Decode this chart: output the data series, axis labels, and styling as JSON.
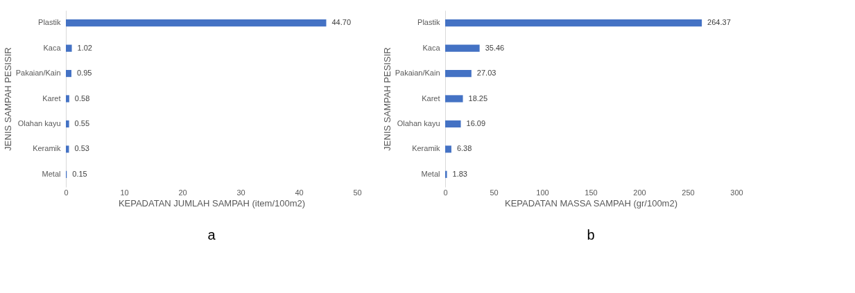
{
  "chart_data": [
    {
      "type": "bar",
      "orientation": "horizontal",
      "categories": [
        "Plastik",
        "Kaca",
        "Pakaian/Kain",
        "Karet",
        "Olahan kayu",
        "Keramik",
        "Metal"
      ],
      "values": [
        44.7,
        1.02,
        0.95,
        0.58,
        0.55,
        0.53,
        0.15
      ],
      "value_labels": [
        "44.70",
        "1.02",
        "0.95",
        "0.58",
        "0.55",
        "0.53",
        "0.15"
      ],
      "color": "#4472c4",
      "xlim": [
        0,
        50
      ],
      "xticks": [
        0,
        10,
        20,
        30,
        40,
        50
      ],
      "xlabel": "KEPADATAN JUMLAH SAMPAH (item/100m2)",
      "ylabel": "JENIS SAMPAH PESISIR",
      "grid": false,
      "annotations": [
        "a"
      ]
    },
    {
      "type": "bar",
      "orientation": "horizontal",
      "categories": [
        "Plastik",
        "Kaca",
        "Pakaian/Kain",
        "Karet",
        "Olahan kayu",
        "Keramik",
        "Metal"
      ],
      "values": [
        264.37,
        35.46,
        27.03,
        18.25,
        16.09,
        6.38,
        1.83
      ],
      "value_labels": [
        "264.37",
        "35.46",
        "27.03",
        "18.25",
        "16.09",
        "6.38",
        "1.83"
      ],
      "color": "#4472c4",
      "xlim": [
        0,
        300
      ],
      "xticks": [
        0,
        50,
        100,
        150,
        200,
        250,
        300
      ],
      "xlabel": "KEPADATAN MASSA SAMPAH (gr/100m2)",
      "ylabel": "JENIS SAMPAH PESISIR",
      "grid": false,
      "annotations": [
        "b"
      ]
    }
  ]
}
